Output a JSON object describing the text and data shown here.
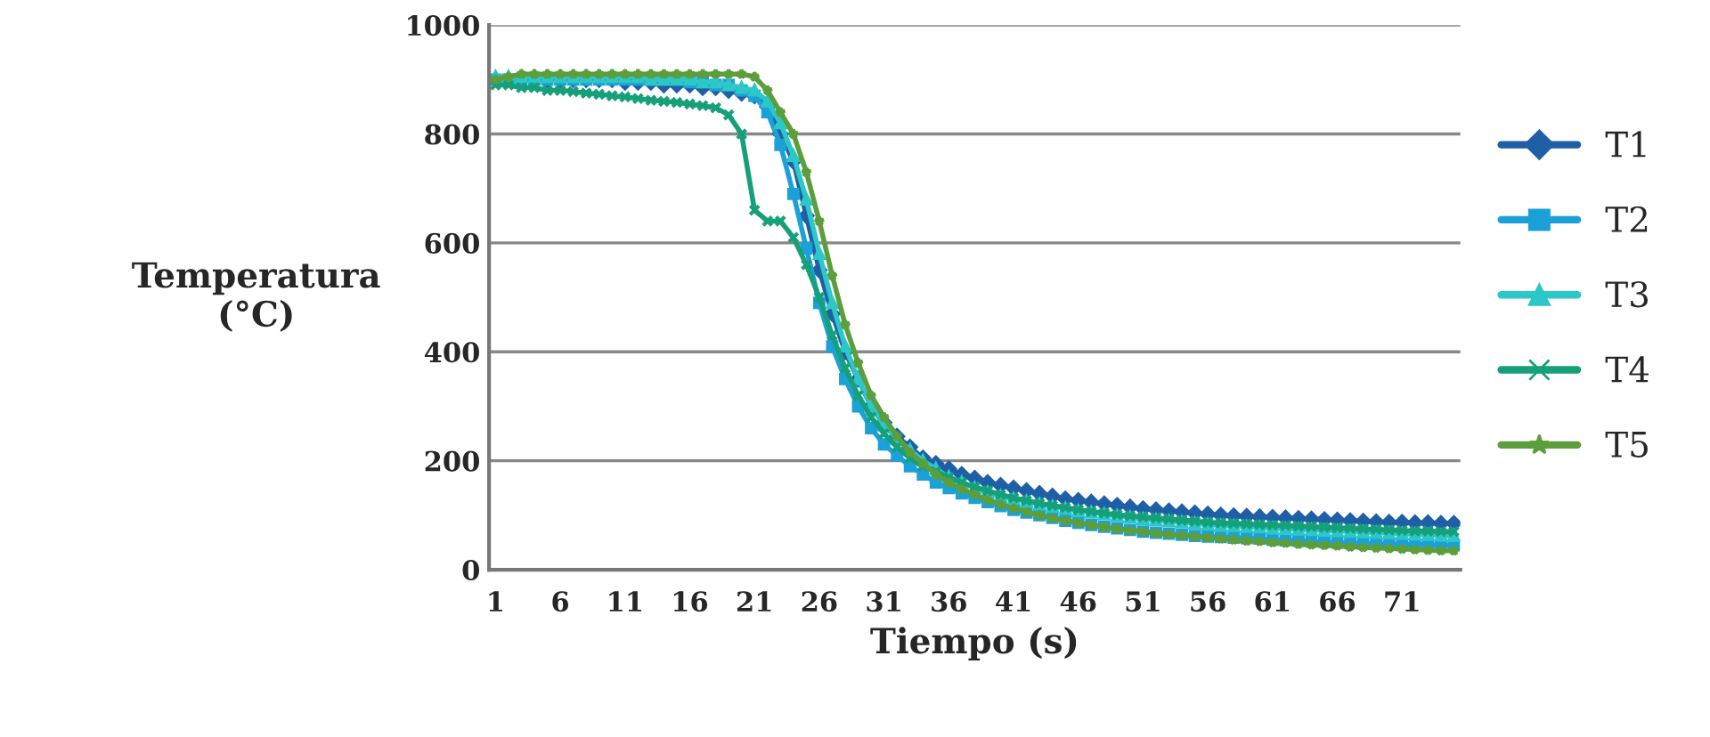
{
  "chart_data": {
    "type": "line",
    "xlabel": "Tiempo (s)",
    "ylabel": "Temperatura\n(°C)",
    "categories": [
      "1",
      null,
      null,
      null,
      null,
      "6",
      null,
      null,
      null,
      null,
      "11",
      null,
      null,
      null,
      null,
      "16",
      null,
      null,
      null,
      null,
      "21",
      null,
      null,
      null,
      null,
      "26",
      null,
      null,
      null,
      null,
      "31",
      null,
      null,
      null,
      null,
      "36",
      null,
      null,
      null,
      null,
      "41",
      null,
      null,
      null,
      null,
      "46",
      null,
      null,
      null,
      null,
      "51",
      null,
      null,
      null,
      null,
      "56",
      null,
      null,
      null,
      null,
      "61",
      null,
      null,
      null,
      null,
      "66",
      null,
      null,
      null,
      null,
      "71",
      null,
      null,
      null,
      null
    ],
    "ylim": [
      0,
      1000
    ],
    "yticks": [
      0,
      200,
      400,
      600,
      800,
      1000
    ],
    "grid": "y",
    "legend": "right",
    "series": [
      {
        "name": "T1",
        "color": "#1f5fa6",
        "marker": "diamond",
        "values": [
          null,
          null,
          null,
          900,
          900,
          900,
          900,
          900,
          900,
          900,
          895,
          895,
          895,
          890,
          890,
          890,
          885,
          885,
          880,
          875,
          870,
          850,
          800,
          750,
          650,
          550,
          470,
          400,
          350,
          300,
          270,
          245,
          225,
          205,
          195,
          185,
          175,
          168,
          160,
          155,
          150,
          145,
          140,
          135,
          130,
          127,
          124,
          121,
          118,
          115,
          112,
          110,
          108,
          106,
          104,
          102,
          100,
          99,
          98,
          97,
          96,
          95,
          94,
          93,
          92,
          91,
          90,
          89,
          88,
          87,
          87,
          86,
          86,
          85,
          85
        ]
      },
      {
        "name": "T2",
        "color": "#1ba1d8",
        "marker": "square",
        "values": [
          900,
          900,
          900,
          900,
          900,
          900,
          900,
          900,
          900,
          900,
          900,
          900,
          900,
          900,
          900,
          895,
          895,
          890,
          890,
          880,
          870,
          840,
          780,
          690,
          590,
          490,
          410,
          350,
          300,
          260,
          230,
          210,
          190,
          175,
          160,
          150,
          140,
          132,
          124,
          117,
          110,
          105,
          100,
          95,
          90,
          86,
          82,
          79,
          76,
          73,
          70,
          68,
          66,
          64,
          62,
          61,
          60,
          59,
          58,
          57,
          55,
          54,
          53,
          52,
          51,
          50,
          49,
          48,
          48,
          47,
          47,
          46,
          46,
          45,
          45
        ]
      },
      {
        "name": "T3",
        "color": "#2cc7c7",
        "marker": "triangle",
        "values": [
          905,
          905,
          905,
          905,
          905,
          905,
          905,
          905,
          905,
          905,
          905,
          905,
          900,
          900,
          900,
          900,
          895,
          895,
          890,
          885,
          880,
          860,
          820,
          760,
          680,
          580,
          490,
          410,
          350,
          300,
          265,
          240,
          220,
          200,
          185,
          170,
          160,
          150,
          142,
          135,
          130,
          125,
          120,
          116,
          112,
          108,
          105,
          102,
          99,
          96,
          93,
          91,
          89,
          87,
          85,
          83,
          81,
          80,
          79,
          78,
          76,
          75,
          74,
          73,
          72,
          71,
          70,
          69,
          68,
          67,
          66,
          65,
          64,
          63,
          62
        ]
      },
      {
        "name": "T4",
        "color": "#16a07a",
        "marker": "cross",
        "values": [
          890,
          890,
          885,
          885,
          880,
          880,
          878,
          875,
          873,
          870,
          868,
          865,
          862,
          860,
          858,
          855,
          852,
          848,
          835,
          800,
          660,
          640,
          640,
          610,
          560,
          500,
          430,
          370,
          320,
          280,
          250,
          225,
          205,
          190,
          180,
          170,
          160,
          152,
          145,
          138,
          132,
          127,
          122,
          118,
          114,
          110,
          107,
          104,
          101,
          99,
          97,
          95,
          93,
          91,
          89,
          87,
          86,
          85,
          84,
          83,
          82,
          81,
          80,
          79,
          78,
          77,
          76,
          75,
          74,
          73,
          72,
          71,
          71,
          70,
          70
        ]
      },
      {
        "name": "T5",
        "color": "#5c9e3c",
        "marker": "star",
        "values": [
          900,
          905,
          910,
          910,
          910,
          910,
          910,
          910,
          910,
          910,
          910,
          910,
          910,
          910,
          910,
          910,
          910,
          910,
          910,
          910,
          905,
          880,
          840,
          800,
          730,
          640,
          540,
          450,
          380,
          320,
          280,
          245,
          215,
          195,
          175,
          160,
          148,
          138,
          128,
          120,
          113,
          106,
          100,
          95,
          90,
          86,
          82,
          78,
          75,
          72,
          70,
          67,
          65,
          63,
          61,
          59,
          57,
          55,
          53,
          52,
          50,
          49,
          47,
          46,
          45,
          44,
          42,
          41,
          40,
          39,
          38,
          37,
          36,
          35,
          35
        ]
      }
    ]
  }
}
